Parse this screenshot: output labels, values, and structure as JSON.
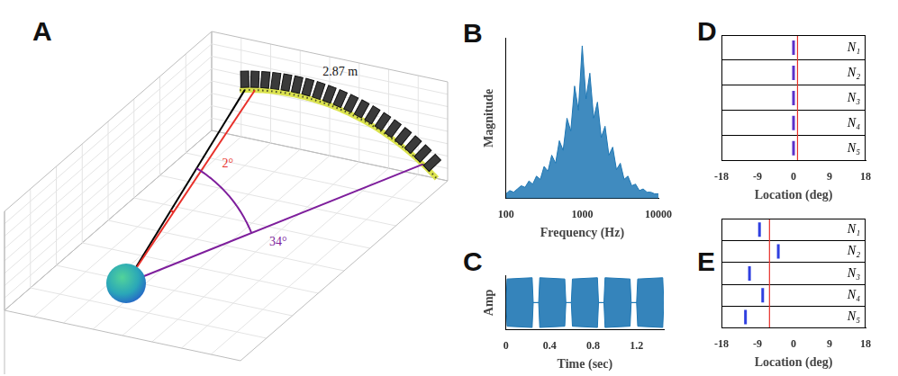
{
  "diagram": {
    "panel": "A",
    "distance_label": "2.87 m",
    "reference_color": "#000000",
    "angles": [
      {
        "value": 2,
        "label": "2°",
        "color": "#e8302a"
      },
      {
        "value": 34,
        "label": "34°",
        "color": "#7e1e9c"
      }
    ]
  },
  "chart_data": [
    {
      "panel": "B",
      "type": "line",
      "x_label": "Frequency (Hz)",
      "y_label": "Magnitude",
      "x": [
        100,
        112,
        126,
        141,
        158,
        178,
        200,
        224,
        251,
        282,
        316,
        355,
        398,
        447,
        501,
        562,
        631,
        708,
        794,
        891,
        1000,
        1122,
        1259,
        1413,
        1585,
        1778,
        1995,
        2239,
        2512,
        2818,
        3162,
        3548,
        3981,
        4467,
        5012,
        5623,
        6310,
        7079,
        7943,
        8913,
        10000
      ],
      "values": [
        0.03,
        0.05,
        0.04,
        0.06,
        0.08,
        0.07,
        0.11,
        0.09,
        0.14,
        0.12,
        0.2,
        0.17,
        0.27,
        0.22,
        0.36,
        0.3,
        0.5,
        0.42,
        0.7,
        0.55,
        0.95,
        0.62,
        0.78,
        0.5,
        0.6,
        0.38,
        0.45,
        0.27,
        0.32,
        0.18,
        0.22,
        0.12,
        0.14,
        0.08,
        0.09,
        0.05,
        0.06,
        0.04,
        0.04,
        0.03,
        0.03
      ],
      "color": "#1f77b4",
      "log": "x",
      "xlim": [
        100,
        10000
      ],
      "xticks": [
        100,
        1000,
        10000
      ],
      "ylim": [
        0,
        1
      ],
      "tick_labels": "x",
      "grid": false
    },
    {
      "panel": "C",
      "type": "area",
      "x_label": "Time (sec)",
      "y_label": "Amp",
      "x": [
        0,
        0.01,
        0.24,
        0.25,
        0.3,
        0.31,
        0.54,
        0.55,
        0.6,
        0.61,
        0.84,
        0.85,
        0.9,
        0.91,
        1.14,
        1.15,
        1.2,
        1.21,
        1.44,
        1.45
      ],
      "high": [
        0,
        0.95,
        1,
        0,
        0,
        1,
        0.95,
        0,
        0,
        0.95,
        1,
        0,
        0,
        1,
        0.95,
        0,
        0,
        0.95,
        1,
        0
      ],
      "low": [
        0,
        -0.95,
        -1,
        0,
        0,
        -1,
        -0.95,
        0,
        0,
        -0.95,
        -1,
        0,
        0,
        -1,
        -0.95,
        0,
        0,
        -0.95,
        -1,
        0
      ],
      "color": "#1f77b4",
      "xlim": [
        0,
        1.45
      ],
      "xticks": [
        0,
        0.4,
        0.8,
        1.2
      ],
      "ylim": [
        -1.1,
        1.1
      ],
      "tick_labels": "x",
      "grid": false
    },
    {
      "panel": "D",
      "type": "scatter",
      "x_label": "Location (deg)",
      "categories": [
        "N₁",
        "N₂",
        "N₃",
        "N₄",
        "N₅"
      ],
      "values": [
        0,
        0,
        0,
        0,
        0
      ],
      "reference": 1,
      "reference_color": "#e8302a",
      "color": "#5c31c9",
      "marker": "line",
      "xlim": [
        -18,
        18
      ],
      "xticks": [
        -18,
        -9,
        0,
        9,
        18
      ],
      "tick_labels": "x",
      "grid": true
    },
    {
      "panel": "E",
      "type": "scatter",
      "x_label": "Location (deg)",
      "categories": [
        "N₁",
        "N₂",
        "N₃",
        "N₄",
        "N₅"
      ],
      "values": [
        -8.5,
        -3.8,
        -11,
        -7.7,
        -12
      ],
      "reference": -6,
      "reference_color": "#e8302a",
      "color": "#2f3fe0",
      "marker": "line",
      "xlim": [
        -18,
        18
      ],
      "xticks": [
        -18,
        -9,
        0,
        9,
        18
      ],
      "tick_labels": "x",
      "grid": true
    }
  ]
}
